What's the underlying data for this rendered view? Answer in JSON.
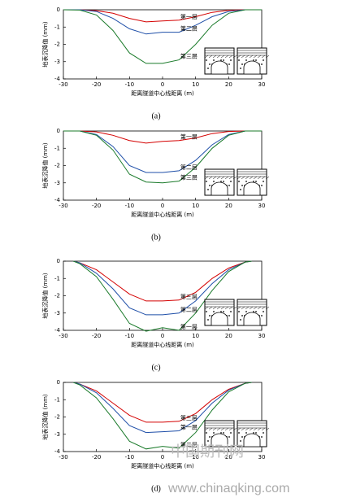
{
  "chart_data": [
    {
      "type": "line",
      "caption": "(a)",
      "ylabel": "地表沉降值 (mm)",
      "xlabel": "距离隧道中心线距离 (m)",
      "xlim": [
        -30,
        30
      ],
      "ylim": [
        -4,
        0
      ],
      "xticks": [
        -30,
        -20,
        -10,
        0,
        10,
        20,
        30
      ],
      "yticks": [
        0,
        -1,
        -2,
        -3,
        -4
      ],
      "x": [
        -30,
        -25,
        -20,
        -15,
        -10,
        -5,
        0,
        5,
        10,
        15,
        20,
        25,
        30
      ],
      "series": [
        {
          "name": "第一层",
          "color": "#d40000",
          "values": [
            0,
            0,
            -0.05,
            -0.2,
            -0.5,
            -0.7,
            -0.65,
            -0.6,
            -0.4,
            -0.15,
            -0.03,
            0,
            0
          ]
        },
        {
          "name": "第二层",
          "color": "#1f4fa8",
          "values": [
            0,
            0,
            -0.1,
            -0.5,
            -1.1,
            -1.4,
            -1.3,
            -1.3,
            -0.9,
            -0.4,
            -0.1,
            0,
            0
          ]
        },
        {
          "name": "第三层",
          "color": "#1a7a2a",
          "values": [
            0,
            -0.02,
            -0.3,
            -1.2,
            -2.5,
            -3.1,
            -3.1,
            -2.9,
            -2.0,
            -0.9,
            -0.2,
            0,
            0
          ]
        }
      ]
    },
    {
      "type": "line",
      "caption": "(b)",
      "ylabel": "地表沉降值 (mm)",
      "xlabel": "距离隧道中心线距离 (m)",
      "xlim": [
        -30,
        30
      ],
      "ylim": [
        -4,
        0
      ],
      "xticks": [
        -30,
        -20,
        -10,
        0,
        10,
        20,
        30
      ],
      "yticks": [
        0,
        -1,
        -2,
        -3,
        -4
      ],
      "x": [
        -30,
        -25,
        -20,
        -15,
        -10,
        -5,
        0,
        5,
        10,
        15,
        20,
        25,
        30
      ],
      "series": [
        {
          "name": "第一层",
          "color": "#d40000",
          "values": [
            0,
            0,
            -0.05,
            -0.25,
            -0.55,
            -0.7,
            -0.6,
            -0.55,
            -0.4,
            -0.15,
            -0.03,
            0,
            0
          ]
        },
        {
          "name": "第二层",
          "color": "#1f4fa8",
          "values": [
            0,
            0,
            -0.2,
            -0.9,
            -2.0,
            -2.4,
            -2.4,
            -2.3,
            -1.7,
            -0.8,
            -0.2,
            0,
            0
          ]
        },
        {
          "name": "第三层",
          "color": "#1a7a2a",
          "values": [
            0,
            0,
            -0.25,
            -1.1,
            -2.5,
            -2.95,
            -3.0,
            -2.9,
            -2.1,
            -1.0,
            -0.25,
            0,
            0
          ]
        }
      ]
    },
    {
      "type": "line",
      "caption": "(c)",
      "ylabel": "地表沉降值 (mm)",
      "xlabel": "距离隧道中心线距离 (m)",
      "xlim": [
        -30,
        30
      ],
      "ylim": [
        -4,
        0
      ],
      "xticks": [
        -30,
        -20,
        -10,
        0,
        10,
        20,
        30
      ],
      "yticks": [
        0,
        -1,
        -2,
        -3,
        -4
      ],
      "x": [
        -27,
        -25,
        -20,
        -15,
        -10,
        -5,
        0,
        5,
        10,
        15,
        20,
        25,
        27
      ],
      "series": [
        {
          "name": "第三层",
          "color": "#d40000",
          "values": [
            0,
            -0.1,
            -0.5,
            -1.2,
            -1.9,
            -2.3,
            -2.3,
            -2.25,
            -1.8,
            -1.0,
            -0.4,
            -0.05,
            0
          ]
        },
        {
          "name": "第二层",
          "color": "#1f4fa8",
          "values": [
            0,
            -0.1,
            -0.7,
            -1.6,
            -2.7,
            -3.1,
            -3.1,
            -3.0,
            -2.3,
            -1.3,
            -0.5,
            -0.05,
            0
          ]
        },
        {
          "name": "第一层",
          "color": "#1a7a2a",
          "values": [
            0,
            -0.15,
            -0.9,
            -2.2,
            -3.6,
            -4.05,
            -3.85,
            -4.0,
            -3.0,
            -1.7,
            -0.6,
            -0.05,
            0
          ]
        }
      ]
    },
    {
      "type": "line",
      "caption": "(d)",
      "ylabel": "地表沉降值 (mm)",
      "xlabel": "距离隧道中心线距离 (m)",
      "xlim": [
        -30,
        30
      ],
      "ylim": [
        -4,
        0
      ],
      "xticks": [
        -30,
        -20,
        -10,
        0,
        10,
        20,
        30
      ],
      "yticks": [
        0,
        -1,
        -2,
        -3,
        -4
      ],
      "x": [
        -27,
        -25,
        -20,
        -15,
        -10,
        -5,
        0,
        5,
        10,
        15,
        20,
        25,
        27
      ],
      "series": [
        {
          "name": "第三层",
          "color": "#d40000",
          "values": [
            0,
            -0.1,
            -0.5,
            -1.2,
            -1.9,
            -2.3,
            -2.3,
            -2.25,
            -1.8,
            -1.0,
            -0.4,
            -0.05,
            0
          ]
        },
        {
          "name": "第一层",
          "color": "#1f4fa8",
          "values": [
            0,
            -0.1,
            -0.6,
            -1.5,
            -2.5,
            -2.9,
            -2.85,
            -2.8,
            -2.2,
            -1.2,
            -0.45,
            -0.05,
            0
          ]
        },
        {
          "name": "第二层",
          "color": "#1a7a2a",
          "values": [
            0,
            -0.15,
            -0.9,
            -2.1,
            -3.4,
            -3.85,
            -3.7,
            -3.8,
            -2.9,
            -1.6,
            -0.55,
            -0.05,
            0
          ]
        }
      ]
    }
  ],
  "watermark": {
    "text": "中国期刊网",
    "url": "www.chinaqking.com"
  }
}
